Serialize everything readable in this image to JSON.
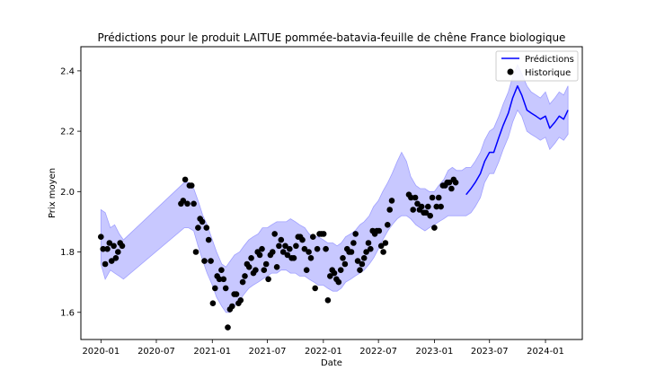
{
  "chart_data": {
    "type": "line",
    "title": "Prédictions pour le produit LAITUE pommée-batavia-feuille de chêne France biologique",
    "xlabel": "Date",
    "ylabel": "Prix moyen",
    "xlim": [
      "2019-10-27",
      "2024-05-01"
    ],
    "ylim": [
      1.51,
      2.48
    ],
    "x_ticks": [
      "2020-01",
      "2020-07",
      "2021-01",
      "2021-07",
      "2022-01",
      "2022-07",
      "2023-01",
      "2023-07",
      "2024-01"
    ],
    "y_ticks": [
      1.6,
      1.8,
      2.0,
      2.2,
      2.4
    ],
    "grid": false,
    "legend": {
      "position": "top-right",
      "entries": [
        "Prédictions",
        "Historique"
      ]
    },
    "colors": {
      "prediction_line": "#0000ff",
      "interval_fill": "#c8c8ff",
      "interval_edge": "#a0a0ff",
      "history_points": "#000000"
    },
    "series": [
      {
        "name": "Prédictions",
        "kind": "line",
        "points": [
          [
            "2023-04-15",
            1.99
          ],
          [
            "2023-05-01",
            2.01
          ],
          [
            "2023-05-15",
            2.03
          ],
          [
            "2023-06-01",
            2.06
          ],
          [
            "2023-06-15",
            2.1
          ],
          [
            "2023-07-01",
            2.13
          ],
          [
            "2023-07-15",
            2.13
          ],
          [
            "2023-08-01",
            2.18
          ],
          [
            "2023-08-15",
            2.22
          ],
          [
            "2023-09-01",
            2.26
          ],
          [
            "2023-09-15",
            2.31
          ],
          [
            "2023-10-01",
            2.35
          ],
          [
            "2023-10-15",
            2.32
          ],
          [
            "2023-11-01",
            2.27
          ],
          [
            "2023-11-15",
            2.26
          ],
          [
            "2023-12-01",
            2.25
          ],
          [
            "2023-12-15",
            2.24
          ],
          [
            "2024-01-01",
            2.25
          ],
          [
            "2024-01-15",
            2.21
          ],
          [
            "2024-02-01",
            2.23
          ],
          [
            "2024-02-15",
            2.25
          ],
          [
            "2024-03-01",
            2.24
          ],
          [
            "2024-03-15",
            2.27
          ]
        ]
      },
      {
        "name": "Historique",
        "kind": "scatter",
        "points": [
          [
            "2020-01-01",
            1.85
          ],
          [
            "2020-01-08",
            1.81
          ],
          [
            "2020-01-15",
            1.76
          ],
          [
            "2020-01-22",
            1.81
          ],
          [
            "2020-01-29",
            1.83
          ],
          [
            "2020-02-05",
            1.77
          ],
          [
            "2020-02-12",
            1.82
          ],
          [
            "2020-02-19",
            1.78
          ],
          [
            "2020-02-26",
            1.8
          ],
          [
            "2020-03-04",
            1.83
          ],
          [
            "2020-03-11",
            1.82
          ],
          [
            "2020-09-20",
            1.96
          ],
          [
            "2020-09-27",
            1.97
          ],
          [
            "2020-10-04",
            2.04
          ],
          [
            "2020-10-11",
            1.96
          ],
          [
            "2020-10-18",
            2.02
          ],
          [
            "2020-10-25",
            2.02
          ],
          [
            "2020-11-01",
            1.96
          ],
          [
            "2020-11-08",
            1.8
          ],
          [
            "2020-11-15",
            1.88
          ],
          [
            "2020-11-22",
            1.91
          ],
          [
            "2020-11-29",
            1.9
          ],
          [
            "2020-12-06",
            1.77
          ],
          [
            "2020-12-13",
            1.88
          ],
          [
            "2020-12-20",
            1.84
          ],
          [
            "2020-12-27",
            1.77
          ],
          [
            "2021-01-03",
            1.63
          ],
          [
            "2021-01-10",
            1.68
          ],
          [
            "2021-01-17",
            1.72
          ],
          [
            "2021-01-24",
            1.71
          ],
          [
            "2021-01-31",
            1.74
          ],
          [
            "2021-02-07",
            1.71
          ],
          [
            "2021-02-14",
            1.68
          ],
          [
            "2021-02-21",
            1.55
          ],
          [
            "2021-02-28",
            1.61
          ],
          [
            "2021-03-07",
            1.62
          ],
          [
            "2021-03-14",
            1.66
          ],
          [
            "2021-03-21",
            1.66
          ],
          [
            "2021-03-28",
            1.63
          ],
          [
            "2021-04-04",
            1.64
          ],
          [
            "2021-04-11",
            1.7
          ],
          [
            "2021-04-18",
            1.72
          ],
          [
            "2021-04-25",
            1.76
          ],
          [
            "2021-05-02",
            1.75
          ],
          [
            "2021-05-09",
            1.78
          ],
          [
            "2021-05-16",
            1.73
          ],
          [
            "2021-05-23",
            1.74
          ],
          [
            "2021-05-30",
            1.8
          ],
          [
            "2021-06-06",
            1.79
          ],
          [
            "2021-06-13",
            1.81
          ],
          [
            "2021-06-20",
            1.74
          ],
          [
            "2021-06-27",
            1.76
          ],
          [
            "2021-07-04",
            1.71
          ],
          [
            "2021-07-11",
            1.79
          ],
          [
            "2021-07-18",
            1.8
          ],
          [
            "2021-07-25",
            1.86
          ],
          [
            "2021-08-01",
            1.75
          ],
          [
            "2021-08-08",
            1.82
          ],
          [
            "2021-08-15",
            1.84
          ],
          [
            "2021-08-22",
            1.8
          ],
          [
            "2021-08-29",
            1.82
          ],
          [
            "2021-09-05",
            1.79
          ],
          [
            "2021-09-12",
            1.81
          ],
          [
            "2021-09-19",
            1.78
          ],
          [
            "2021-09-26",
            1.78
          ],
          [
            "2021-10-03",
            1.82
          ],
          [
            "2021-10-10",
            1.85
          ],
          [
            "2021-10-17",
            1.85
          ],
          [
            "2021-10-24",
            1.84
          ],
          [
            "2021-10-31",
            1.81
          ],
          [
            "2021-11-07",
            1.74
          ],
          [
            "2021-11-14",
            1.8
          ],
          [
            "2021-11-21",
            1.78
          ],
          [
            "2021-11-28",
            1.85
          ],
          [
            "2021-12-05",
            1.68
          ],
          [
            "2021-12-12",
            1.81
          ],
          [
            "2021-12-19",
            1.86
          ],
          [
            "2021-12-26",
            1.86
          ],
          [
            "2022-01-02",
            1.86
          ],
          [
            "2022-01-09",
            1.81
          ],
          [
            "2022-01-16",
            1.64
          ],
          [
            "2022-01-23",
            1.72
          ],
          [
            "2022-01-30",
            1.74
          ],
          [
            "2022-02-06",
            1.73
          ],
          [
            "2022-02-13",
            1.71
          ],
          [
            "2022-02-20",
            1.7
          ],
          [
            "2022-02-27",
            1.74
          ],
          [
            "2022-03-06",
            1.78
          ],
          [
            "2022-03-13",
            1.76
          ],
          [
            "2022-03-20",
            1.81
          ],
          [
            "2022-03-27",
            1.8
          ],
          [
            "2022-04-03",
            1.8
          ],
          [
            "2022-04-10",
            1.83
          ],
          [
            "2022-04-17",
            1.86
          ],
          [
            "2022-04-24",
            1.77
          ],
          [
            "2022-05-01",
            1.74
          ],
          [
            "2022-05-08",
            1.76
          ],
          [
            "2022-05-15",
            1.78
          ],
          [
            "2022-05-22",
            1.8
          ],
          [
            "2022-05-29",
            1.83
          ],
          [
            "2022-06-05",
            1.81
          ],
          [
            "2022-06-12",
            1.87
          ],
          [
            "2022-06-19",
            1.86
          ],
          [
            "2022-06-26",
            1.87
          ],
          [
            "2022-07-03",
            1.87
          ],
          [
            "2022-07-10",
            1.82
          ],
          [
            "2022-07-17",
            1.8
          ],
          [
            "2022-07-24",
            1.83
          ],
          [
            "2022-07-31",
            1.89
          ],
          [
            "2022-08-07",
            1.94
          ],
          [
            "2022-08-14",
            1.97
          ],
          [
            "2022-10-09",
            1.99
          ],
          [
            "2022-10-16",
            1.98
          ],
          [
            "2022-10-23",
            1.94
          ],
          [
            "2022-10-30",
            1.98
          ],
          [
            "2022-11-06",
            1.96
          ],
          [
            "2022-11-13",
            1.94
          ],
          [
            "2022-11-20",
            1.95
          ],
          [
            "2022-11-27",
            1.93
          ],
          [
            "2022-12-04",
            1.93
          ],
          [
            "2022-12-11",
            1.95
          ],
          [
            "2022-12-18",
            1.92
          ],
          [
            "2022-12-25",
            1.98
          ],
          [
            "2023-01-01",
            1.88
          ],
          [
            "2023-01-08",
            1.95
          ],
          [
            "2023-01-15",
            1.98
          ],
          [
            "2023-01-22",
            1.95
          ],
          [
            "2023-01-29",
            2.02
          ],
          [
            "2023-02-05",
            2.02
          ],
          [
            "2023-02-12",
            2.03
          ],
          [
            "2023-02-19",
            2.03
          ],
          [
            "2023-02-26",
            2.01
          ],
          [
            "2023-03-05",
            2.04
          ],
          [
            "2023-03-12",
            2.03
          ]
        ]
      }
    ],
    "interval": [
      [
        "2020-01-01",
        1.76,
        1.94
      ],
      [
        "2020-01-15",
        1.71,
        1.93
      ],
      [
        "2020-02-01",
        1.74,
        1.88
      ],
      [
        "2020-02-15",
        1.73,
        1.89
      ],
      [
        "2020-03-01",
        1.72,
        1.86
      ],
      [
        "2020-03-15",
        1.71,
        1.84
      ],
      [
        "2020-10-01",
        1.88,
        2.03
      ],
      [
        "2020-10-15",
        1.88,
        2.03
      ],
      [
        "2020-11-01",
        1.87,
        2.01
      ],
      [
        "2020-11-15",
        1.82,
        1.97
      ],
      [
        "2020-12-01",
        1.77,
        1.92
      ],
      [
        "2020-12-15",
        1.73,
        1.89
      ],
      [
        "2021-01-01",
        1.69,
        1.84
      ],
      [
        "2021-01-15",
        1.65,
        1.8
      ],
      [
        "2021-02-01",
        1.62,
        1.76
      ],
      [
        "2021-02-15",
        1.6,
        1.75
      ],
      [
        "2021-03-01",
        1.6,
        1.77
      ],
      [
        "2021-03-15",
        1.62,
        1.79
      ],
      [
        "2021-04-01",
        1.64,
        1.8
      ],
      [
        "2021-04-15",
        1.66,
        1.82
      ],
      [
        "2021-05-01",
        1.68,
        1.84
      ],
      [
        "2021-05-15",
        1.69,
        1.85
      ],
      [
        "2021-06-01",
        1.7,
        1.86
      ],
      [
        "2021-06-15",
        1.71,
        1.88
      ],
      [
        "2021-07-01",
        1.72,
        1.88
      ],
      [
        "2021-07-15",
        1.73,
        1.89
      ],
      [
        "2021-08-01",
        1.73,
        1.9
      ],
      [
        "2021-08-15",
        1.74,
        1.9
      ],
      [
        "2021-09-01",
        1.74,
        1.9
      ],
      [
        "2021-09-15",
        1.73,
        1.91
      ],
      [
        "2021-10-01",
        1.73,
        1.9
      ],
      [
        "2021-10-15",
        1.72,
        1.89
      ],
      [
        "2021-11-01",
        1.72,
        1.88
      ],
      [
        "2021-11-15",
        1.71,
        1.86
      ],
      [
        "2021-12-01",
        1.7,
        1.85
      ],
      [
        "2021-12-15",
        1.69,
        1.85
      ],
      [
        "2022-01-01",
        1.69,
        1.84
      ],
      [
        "2022-01-15",
        1.68,
        1.83
      ],
      [
        "2022-02-01",
        1.67,
        1.83
      ],
      [
        "2022-02-15",
        1.67,
        1.82
      ],
      [
        "2022-03-01",
        1.68,
        1.83
      ],
      [
        "2022-03-15",
        1.7,
        1.85
      ],
      [
        "2022-04-01",
        1.71,
        1.86
      ],
      [
        "2022-04-15",
        1.72,
        1.87
      ],
      [
        "2022-05-01",
        1.73,
        1.89
      ],
      [
        "2022-05-15",
        1.74,
        1.9
      ],
      [
        "2022-06-01",
        1.76,
        1.92
      ],
      [
        "2022-06-15",
        1.78,
        1.95
      ],
      [
        "2022-07-01",
        1.81,
        1.97
      ],
      [
        "2022-07-15",
        1.84,
        2.0
      ],
      [
        "2022-08-01",
        1.87,
        2.03
      ],
      [
        "2022-08-15",
        1.89,
        2.06
      ],
      [
        "2022-09-01",
        1.91,
        2.1
      ],
      [
        "2022-09-15",
        1.92,
        2.13
      ],
      [
        "2022-10-01",
        1.92,
        2.1
      ],
      [
        "2022-10-15",
        1.91,
        2.05
      ],
      [
        "2022-11-01",
        1.89,
        2.02
      ],
      [
        "2022-11-15",
        1.88,
        2.01
      ],
      [
        "2022-12-01",
        1.87,
        2.01
      ],
      [
        "2022-12-15",
        1.88,
        2.0
      ],
      [
        "2023-01-01",
        1.89,
        2.0
      ],
      [
        "2023-01-15",
        1.9,
        2.02
      ],
      [
        "2023-02-01",
        1.91,
        2.04
      ],
      [
        "2023-02-15",
        1.92,
        2.07
      ],
      [
        "2023-03-01",
        1.92,
        2.08
      ],
      [
        "2023-03-15",
        1.92,
        2.07
      ],
      [
        "2023-04-01",
        1.92,
        2.07
      ],
      [
        "2023-04-15",
        1.92,
        2.08
      ],
      [
        "2023-05-01",
        1.93,
        2.08
      ],
      [
        "2023-05-15",
        1.95,
        2.1
      ],
      [
        "2023-06-01",
        1.98,
        2.13
      ],
      [
        "2023-06-15",
        2.03,
        2.17
      ],
      [
        "2023-07-01",
        2.06,
        2.2
      ],
      [
        "2023-07-15",
        2.06,
        2.21
      ],
      [
        "2023-08-01",
        2.1,
        2.25
      ],
      [
        "2023-08-15",
        2.14,
        2.29
      ],
      [
        "2023-09-01",
        2.18,
        2.33
      ],
      [
        "2023-09-15",
        2.23,
        2.38
      ],
      [
        "2023-10-01",
        2.27,
        2.42
      ],
      [
        "2023-10-15",
        2.25,
        2.39
      ],
      [
        "2023-11-01",
        2.2,
        2.35
      ],
      [
        "2023-11-15",
        2.19,
        2.33
      ],
      [
        "2023-12-01",
        2.18,
        2.32
      ],
      [
        "2023-12-15",
        2.17,
        2.31
      ],
      [
        "2024-01-01",
        2.18,
        2.33
      ],
      [
        "2024-01-15",
        2.14,
        2.29
      ],
      [
        "2024-02-01",
        2.16,
        2.31
      ],
      [
        "2024-02-15",
        2.18,
        2.33
      ],
      [
        "2024-03-01",
        2.17,
        2.32
      ],
      [
        "2024-03-15",
        2.19,
        2.35
      ]
    ]
  }
}
